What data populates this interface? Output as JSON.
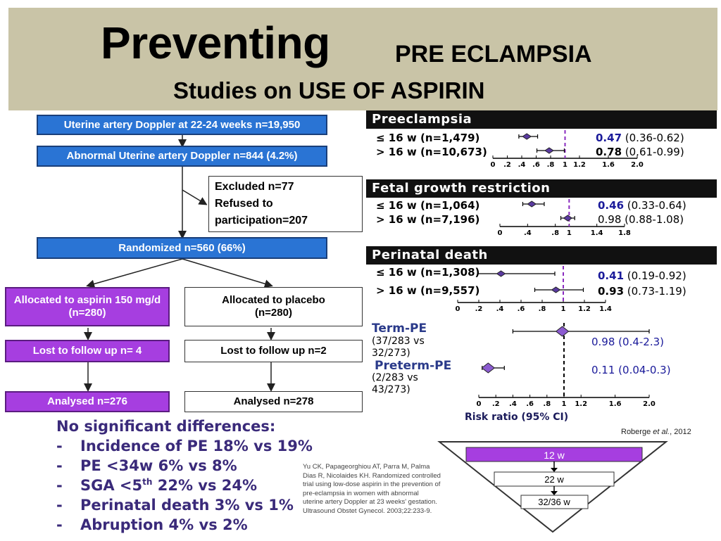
{
  "title": {
    "main": "Preventing",
    "sub1": "PRE ECLAMPSIA",
    "sub2": "Studies on USE OF ASPIRIN"
  },
  "flowchart": {
    "doppler": "Uterine artery Doppler at 22-24 weeks n=19,950",
    "abnormal": "Abnormal Uterine artery Doppler n=844 (4.2%)",
    "excluded": [
      "Excluded n=77",
      "Refused to",
      "participation=207"
    ],
    "randomized": "Randomized n=560 (66%)",
    "aspirin": [
      "Allocated to aspirin 150 mg/d",
      "(n=280)"
    ],
    "placebo": [
      "Allocated to placebo",
      "(n=280)"
    ],
    "lost_aspirin": "Lost to follow up n= 4",
    "lost_placebo": "Lost to follow up n=2",
    "analysed_aspirin": "Analysed n=276",
    "analysed_placebo": "Analysed n=278"
  },
  "summary": {
    "heading": "No significant differences:",
    "items": [
      {
        "dash": "-",
        "text": "Incidence of PE 18% vs 19%"
      },
      {
        "dash": "-",
        "text": "PE <34w 6% vs 8%"
      },
      {
        "dash": "-",
        "text_pre": "SGA <5",
        "sup": "th",
        "text_post": " 22% vs 24%"
      },
      {
        "dash": "-",
        "text": "Perinatal death 3% vs 1%"
      },
      {
        "dash": "-",
        "text": "Abruption 4% vs 2%"
      }
    ]
  },
  "citation": "Yu CK, Papageorghiou AT, Parra M, Palma Dias R, Nicolaides KH. Randomized controlled trial using low-dose aspirin in the prevention of pre-eclampsia in women with abnormal uterine artery Doppler at 23 weeks' gestation. Ultrasound Obstet Gynecol. 2003;22:233-9.",
  "roberge": {
    "name": "Roberge ",
    "etal": "et al.",
    "year": ", 2012"
  },
  "pyramid": {
    "top": "12 w",
    "mid": "22 w",
    "bottom": "32/36 w"
  },
  "chart_data": [
    {
      "type": "forest",
      "title": "Preeclampsia",
      "ticks": [
        "0",
        ".2",
        ".4",
        ".6",
        ".8",
        "1",
        "1.2",
        "1.6",
        "2.0"
      ],
      "tick_values": [
        0,
        0.2,
        0.4,
        0.6,
        0.8,
        1.0,
        1.2,
        1.6,
        2.0
      ],
      "rows": [
        {
          "label": "≤ 16 w (n=1,479)",
          "estimate": 0.47,
          "ci": [
            0.36,
            0.62
          ],
          "est_text": "0.47",
          "ci_text": " (0.36-0.62)",
          "highlight": true
        },
        {
          "label": "> 16 w (n=10,673)",
          "estimate": 0.78,
          "ci": [
            0.61,
            0.99
          ],
          "est_text": "0.78",
          "ci_text": " (0.61-0.99)",
          "highlight": false
        }
      ]
    },
    {
      "type": "forest",
      "title": "Fetal growth restriction",
      "ticks": [
        "0",
        ".4",
        ".8",
        "1",
        "1.4",
        "1.8"
      ],
      "tick_values": [
        0,
        0.4,
        0.8,
        1.0,
        1.4,
        1.8
      ],
      "rows": [
        {
          "label": "≤ 16 w (n=1,064)",
          "estimate": 0.46,
          "ci": [
            0.33,
            0.64
          ],
          "est_text": "0.46",
          "ci_text": " (0.33-0.64)",
          "highlight": true
        },
        {
          "label": "> 16 w (n=7,196)",
          "estimate": 0.98,
          "ci": [
            0.88,
            1.08
          ],
          "est_text": "0.98",
          "ci_text": " (0.88-1.08)",
          "highlight": false
        }
      ]
    },
    {
      "type": "forest",
      "title": "Perinatal death",
      "ticks": [
        "0",
        ".2",
        ".4",
        ".6",
        ".8",
        "1",
        "1.2",
        "1.4"
      ],
      "tick_values": [
        0,
        0.2,
        0.4,
        0.6,
        0.8,
        1.0,
        1.2,
        1.4
      ],
      "rows": [
        {
          "label": "≤ 16 w (n=1,308)",
          "estimate": 0.41,
          "ci": [
            0.19,
            0.92
          ],
          "est_text": "0.41",
          "ci_text": " (0.19-0.92)",
          "highlight": true
        },
        {
          "label": "> 16 w (n=9,557)",
          "estimate": 0.93,
          "ci": [
            0.73,
            1.19
          ],
          "est_text": "0.93",
          "ci_text": " (0.73-1.19)",
          "highlight": false
        }
      ]
    },
    {
      "type": "forest",
      "xlabel": "Risk ratio (95% CI)",
      "ticks": [
        "0",
        ".2",
        ".4",
        ".6",
        ".8",
        "1",
        "1.2",
        "1.6",
        "2.0"
      ],
      "tick_values": [
        0,
        0.2,
        0.4,
        0.6,
        0.8,
        1.0,
        1.2,
        1.6,
        2.0
      ],
      "rows": [
        {
          "label": "Term-PE",
          "sub": [
            "(37/283 vs",
            "32/273)"
          ],
          "estimate": 0.98,
          "ci": [
            0.4,
            2.3
          ],
          "est_text": "0.98",
          "ci_text": " (0.4-2.3)"
        },
        {
          "label": "Preterm-PE",
          "sub": [
            "(2/283 vs",
            "43/273)"
          ],
          "estimate": 0.11,
          "ci": [
            0.04,
            0.3
          ],
          "est_text": "0.11",
          "ci_text": " (0.04-0.3)"
        }
      ]
    }
  ],
  "colors": {
    "title_band": "#c9c4a7",
    "blue_box": "#2a74d4",
    "purple_box": "#a63ee0",
    "summary_text": "#3a2a7a",
    "estimate_text": "#1a1a9a",
    "diamond": "#5a3aa0",
    "ref_line": "#8a2bbf"
  }
}
